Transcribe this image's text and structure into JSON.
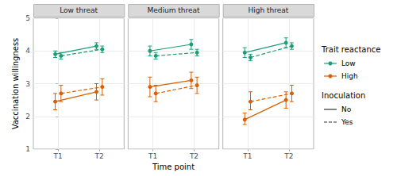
{
  "chart_data": {
    "type": "line",
    "y_label": "Vaccination willingness",
    "x_label": "Time point",
    "categories": [
      "T1",
      "T2"
    ],
    "ylim": [
      1,
      5
    ],
    "yticks": [
      1,
      2,
      3,
      4,
      5
    ],
    "grid": true,
    "legend": "right",
    "legend_groups": [
      {
        "title": "Trait reactance",
        "items": [
          {
            "name": "Low",
            "color": "#1b9e77"
          },
          {
            "name": "High",
            "color": "#d95f02"
          }
        ]
      },
      {
        "title": "Inoculation",
        "items": [
          {
            "name": "No",
            "line_style": "solid"
          },
          {
            "name": "Yes",
            "line_style": "dashed"
          }
        ]
      }
    ],
    "panels": [
      {
        "title": "Low threat",
        "series": [
          {
            "reactance": "Low",
            "inoculation": "No",
            "color": "#1b9e77",
            "line_style": "solid",
            "values": [
              3.9,
              4.15
            ],
            "lower": [
              3.8,
              4.05
            ],
            "upper": [
              4.0,
              4.25
            ]
          },
          {
            "reactance": "Low",
            "inoculation": "Yes",
            "color": "#1b9e77",
            "line_style": "dashed",
            "values": [
              3.85,
              4.05
            ],
            "lower": [
              3.75,
              3.95
            ],
            "upper": [
              3.95,
              4.15
            ]
          },
          {
            "reactance": "High",
            "inoculation": "No",
            "color": "#d95f02",
            "line_style": "solid",
            "values": [
              2.45,
              2.75
            ],
            "lower": [
              2.2,
              2.5
            ],
            "upper": [
              2.7,
              3.0
            ]
          },
          {
            "reactance": "High",
            "inoculation": "Yes",
            "color": "#d95f02",
            "line_style": "dashed",
            "values": [
              2.7,
              2.9
            ],
            "lower": [
              2.45,
              2.65
            ],
            "upper": [
              2.95,
              3.15
            ]
          }
        ]
      },
      {
        "title": "Medium threat",
        "series": [
          {
            "reactance": "Low",
            "inoculation": "No",
            "color": "#1b9e77",
            "line_style": "solid",
            "values": [
              4.0,
              4.2
            ],
            "lower": [
              3.85,
              4.05
            ],
            "upper": [
              4.15,
              4.35
            ]
          },
          {
            "reactance": "Low",
            "inoculation": "Yes",
            "color": "#1b9e77",
            "line_style": "dashed",
            "values": [
              3.85,
              3.95
            ],
            "lower": [
              3.75,
              3.85
            ],
            "upper": [
              3.95,
              4.05
            ]
          },
          {
            "reactance": "High",
            "inoculation": "No",
            "color": "#d95f02",
            "line_style": "solid",
            "values": [
              2.9,
              3.1
            ],
            "lower": [
              2.6,
              2.85
            ],
            "upper": [
              3.2,
              3.35
            ]
          },
          {
            "reactance": "High",
            "inoculation": "Yes",
            "color": "#d95f02",
            "line_style": "dashed",
            "values": [
              2.7,
              2.95
            ],
            "lower": [
              2.45,
              2.7
            ],
            "upper": [
              2.95,
              3.2
            ]
          }
        ]
      },
      {
        "title": "High threat",
        "series": [
          {
            "reactance": "Low",
            "inoculation": "No",
            "color": "#1b9e77",
            "line_style": "solid",
            "values": [
              3.95,
              4.25
            ],
            "lower": [
              3.8,
              4.1
            ],
            "upper": [
              4.1,
              4.4
            ]
          },
          {
            "reactance": "Low",
            "inoculation": "Yes",
            "color": "#1b9e77",
            "line_style": "dashed",
            "values": [
              3.8,
              4.15
            ],
            "lower": [
              3.7,
              4.05
            ],
            "upper": [
              3.9,
              4.25
            ]
          },
          {
            "reactance": "High",
            "inoculation": "No",
            "color": "#d95f02",
            "line_style": "solid",
            "values": [
              1.9,
              2.5
            ],
            "lower": [
              1.75,
              2.25
            ],
            "upper": [
              2.1,
              2.75
            ]
          },
          {
            "reactance": "High",
            "inoculation": "Yes",
            "color": "#d95f02",
            "line_style": "dashed",
            "values": [
              2.45,
              2.7
            ],
            "lower": [
              2.2,
              2.45
            ],
            "upper": [
              2.75,
              2.95
            ]
          }
        ]
      }
    ]
  }
}
